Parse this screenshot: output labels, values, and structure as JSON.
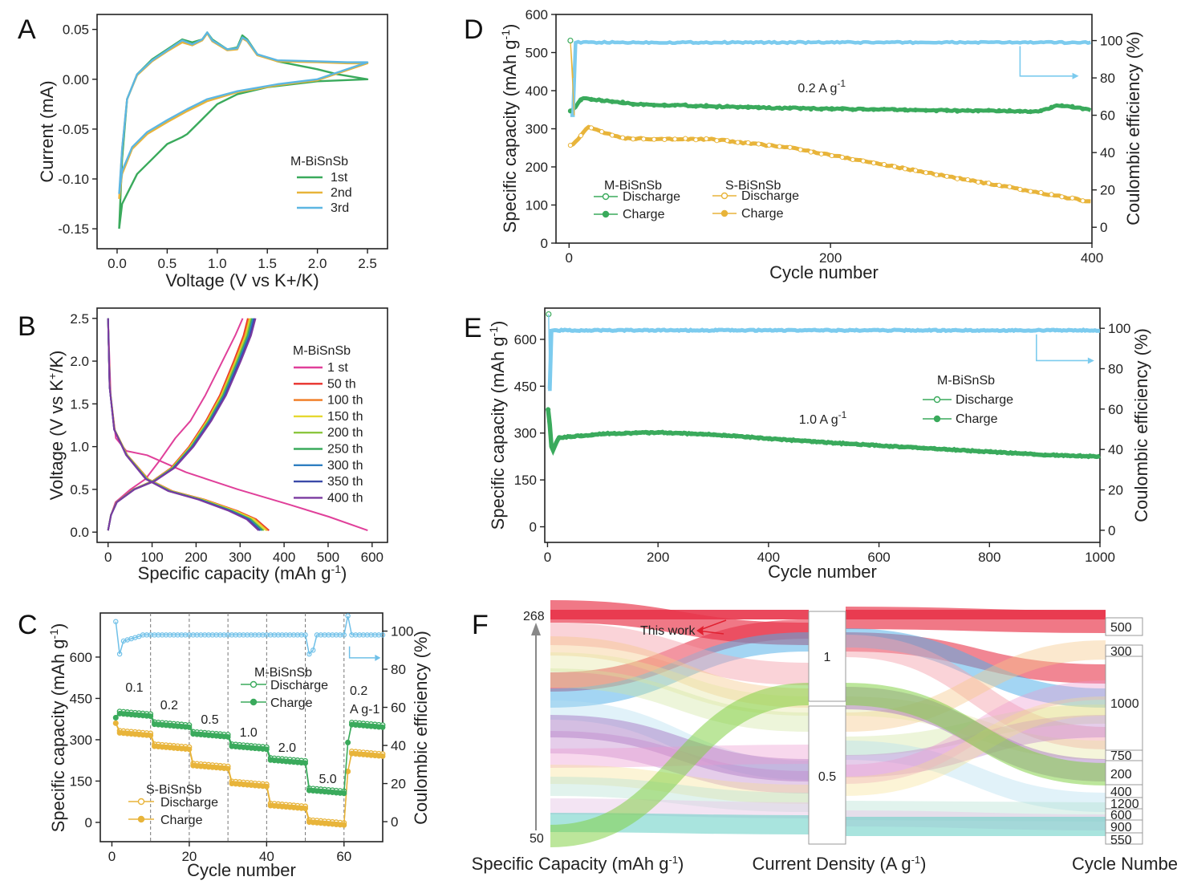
{
  "chart_data": [
    {
      "panel": "A",
      "type": "line",
      "xlabel": "Voltage (V vs K+/K)",
      "ylabel": "Current (mA)",
      "xlim": [
        -0.2,
        2.7
      ],
      "ylim": [
        -0.17,
        0.065
      ],
      "xticks": [
        "0.0",
        "0.5",
        "1.0",
        "1.5",
        "2.0",
        "2.5"
      ],
      "yticks": [
        "0.05",
        "0.00",
        "-0.05",
        "-0.10",
        "-0.15"
      ],
      "legend_title": "M-BiSnSb",
      "series": [
        {
          "name": "1st",
          "color": "#3aaa5c",
          "x": [
            0.02,
            0.05,
            0.1,
            0.2,
            0.35,
            0.5,
            0.65,
            0.7,
            0.85,
            1.0,
            1.2,
            1.5,
            2.0,
            2.5,
            2.2,
            2.0,
            1.6,
            1.4,
            1.3,
            1.25,
            1.2,
            1.1,
            0.95,
            0.9,
            0.85,
            0.75,
            0.65,
            0.5,
            0.35,
            0.2,
            0.1,
            0.05,
            0.02
          ],
          "y": [
            -0.15,
            -0.125,
            -0.115,
            -0.095,
            -0.08,
            -0.065,
            -0.058,
            -0.055,
            -0.04,
            -0.025,
            -0.015,
            -0.008,
            -0.002,
            0.0,
            0.005,
            0.01,
            0.018,
            0.025,
            0.04,
            0.044,
            0.032,
            0.03,
            0.04,
            0.047,
            0.04,
            0.037,
            0.04,
            0.03,
            0.02,
            0.005,
            -0.02,
            -0.08,
            -0.15
          ]
        },
        {
          "name": "2nd",
          "color": "#e8b43a",
          "x": [
            0.02,
            0.05,
            0.15,
            0.3,
            0.5,
            0.7,
            0.9,
            1.2,
            1.6,
            2.0,
            2.5,
            2.3,
            2.0,
            1.6,
            1.4,
            1.3,
            1.25,
            1.2,
            1.1,
            0.95,
            0.9,
            0.85,
            0.75,
            0.65,
            0.5,
            0.35,
            0.2,
            0.1,
            0.05,
            0.02
          ],
          "y": [
            -0.12,
            -0.095,
            -0.07,
            -0.055,
            -0.043,
            -0.032,
            -0.022,
            -0.013,
            -0.006,
            -0.001,
            0.016,
            0.016,
            0.017,
            0.018,
            0.024,
            0.038,
            0.041,
            0.03,
            0.029,
            0.038,
            0.046,
            0.039,
            0.034,
            0.037,
            0.028,
            0.018,
            0.004,
            -0.02,
            -0.07,
            -0.12
          ]
        },
        {
          "name": "3rd",
          "color": "#5cb6e2",
          "x": [
            0.02,
            0.05,
            0.15,
            0.3,
            0.5,
            0.7,
            0.9,
            1.2,
            1.6,
            2.0,
            2.5,
            2.3,
            2.0,
            1.6,
            1.4,
            1.3,
            1.25,
            1.2,
            1.1,
            0.95,
            0.9,
            0.85,
            0.75,
            0.65,
            0.5,
            0.35,
            0.2,
            0.1,
            0.05,
            0.02
          ],
          "y": [
            -0.115,
            -0.092,
            -0.068,
            -0.053,
            -0.041,
            -0.03,
            -0.02,
            -0.012,
            -0.005,
            0.0,
            0.017,
            0.017,
            0.018,
            0.019,
            0.025,
            0.039,
            0.042,
            0.031,
            0.03,
            0.039,
            0.047,
            0.04,
            0.035,
            0.039,
            0.029,
            0.019,
            0.005,
            -0.02,
            -0.07,
            -0.115
          ]
        }
      ]
    },
    {
      "panel": "B",
      "type": "line",
      "xlabel": "Specific capacity (mAh g-1)",
      "ylabel": "Voltage (V vs K+/K)",
      "xlim": [
        -25,
        635
      ],
      "ylim": [
        -0.12,
        2.62
      ],
      "xticks": [
        "0",
        "100",
        "200",
        "300",
        "400",
        "500",
        "600"
      ],
      "yticks": [
        "0.0",
        "0.5",
        "1.0",
        "1.5",
        "2.0",
        "2.5"
      ],
      "legend_title": "M-BiSnSb",
      "series": [
        {
          "name": "1 st",
          "color": "#e0409a",
          "scale": 1.0
        },
        {
          "name": "50 th",
          "color": "#e8302c",
          "scale": 0.62
        },
        {
          "name": "100 th",
          "color": "#f07a20",
          "scale": 0.615
        },
        {
          "name": "150 th",
          "color": "#e6d830",
          "scale": 0.61
        },
        {
          "name": "200 th",
          "color": "#8cc63f",
          "scale": 0.6
        },
        {
          "name": "250 th",
          "color": "#3aaa5c",
          "scale": 0.595
        },
        {
          "name": "300 th",
          "color": "#2f7fc1",
          "scale": 0.59
        },
        {
          "name": "350 th",
          "color": "#3a4aa8",
          "scale": 0.585
        },
        {
          "name": "400 th",
          "color": "#7b3aa0",
          "scale": 0.58
        }
      ]
    },
    {
      "panel": "C",
      "type": "scatter",
      "xlabel": "Cycle number",
      "ylabel": "Specific capacity (mAh g-1)",
      "y2label": "Coulombic efficiency (%)",
      "xlim": [
        -3,
        70
      ],
      "ylim": [
        -70,
        760
      ],
      "y2lim": [
        -10.5,
        109.5
      ],
      "xticks": [
        "0",
        "20",
        "40",
        "60"
      ],
      "yticks": [
        "0",
        "150",
        "300",
        "450",
        "600"
      ],
      "y2ticks": [
        "0",
        "20",
        "40",
        "60",
        "80",
        "100"
      ],
      "rates": [
        "0.1",
        "0.2",
        "0.5",
        "1.0",
        "2.0",
        "5.0",
        "0.2",
        "A g-1"
      ],
      "m_bisnsb": {
        "label": "M-BiSnSb",
        "discharge": "Discharge",
        "charge": "Charge",
        "levels": [
          400,
          360,
          325,
          280,
          230,
          120,
          360
        ]
      },
      "s_bisnsb": {
        "label": "S-BiSnSb",
        "discharge": "Discharge",
        "charge": "Charge",
        "levels": [
          330,
          280,
          210,
          145,
          65,
          5,
          255
        ]
      },
      "ce": 98
    },
    {
      "panel": "D",
      "type": "scatter",
      "xlabel": "Cycle number",
      "ylabel": "Specific capacity (mAh g-1)",
      "y2label": "Coulombic efficiency (%)",
      "xlim": [
        -10,
        400
      ],
      "ylim": [
        0,
        600
      ],
      "y2lim": [
        -8.5,
        114
      ],
      "xticks": [
        "0",
        "200",
        "400"
      ],
      "yticks": [
        "0",
        "100",
        "200",
        "300",
        "400",
        "500",
        "600"
      ],
      "y2ticks": [
        "0",
        "20",
        "40",
        "60",
        "80",
        "100"
      ],
      "rate_label": "0.2 A g-1",
      "legend": {
        "m_title": "M-BiSnSb",
        "s_title": "S-BiSnSb",
        "discharge": "Discharge",
        "charge": "Charge"
      },
      "m_capacity": [
        [
          2,
          345
        ],
        [
          10,
          380
        ],
        [
          50,
          365
        ],
        [
          150,
          355
        ],
        [
          250,
          350
        ],
        [
          360,
          345
        ],
        [
          375,
          362
        ],
        [
          400,
          350
        ]
      ],
      "s_capacity": [
        [
          2,
          255
        ],
        [
          15,
          305
        ],
        [
          40,
          275
        ],
        [
          110,
          272
        ],
        [
          170,
          250
        ],
        [
          250,
          200
        ],
        [
          330,
          150
        ],
        [
          400,
          108
        ]
      ],
      "ce": 99
    },
    {
      "panel": "E",
      "type": "scatter",
      "xlabel": "Cycle number",
      "ylabel": "Specific capacity (mAh g-1)",
      "y2label": "Coulombic efficiency (%)",
      "xlim": [
        -5,
        1000
      ],
      "ylim": [
        -50,
        700
      ],
      "y2lim": [
        -6,
        110
      ],
      "xticks": [
        "0",
        "200",
        "400",
        "600",
        "800",
        "1000"
      ],
      "yticks": [
        "0",
        "150",
        "300",
        "450",
        "600"
      ],
      "y2ticks": [
        "0",
        "20",
        "40",
        "60",
        "80",
        "100"
      ],
      "rate_label": "1.0 A g-1",
      "legend": {
        "title": "M-BiSnSb",
        "discharge": "Discharge",
        "charge": "Charge"
      },
      "capacity": [
        [
          2,
          375
        ],
        [
          8,
          235
        ],
        [
          20,
          285
        ],
        [
          100,
          298
        ],
        [
          200,
          302
        ],
        [
          300,
          295
        ],
        [
          500,
          270
        ],
        [
          700,
          250
        ],
        [
          900,
          230
        ],
        [
          1000,
          225
        ]
      ],
      "ce": 99
    },
    {
      "panel": "F",
      "type": "sankey",
      "axis_labels": [
        "Specific Capacity (mAh g-1)",
        "Current Density (A g-1)",
        "Cycle Numbe"
      ],
      "capacity_range": [
        "268",
        "50"
      ],
      "current_nodes": [
        "1",
        "0.5"
      ],
      "cycle_nodes": [
        "500",
        "300",
        "1000",
        "750",
        "200",
        "400",
        "1200",
        "600",
        "900",
        "550"
      ],
      "annotation": "This work"
    }
  ],
  "panel_letters": [
    "A",
    "B",
    "C",
    "D",
    "E",
    "F"
  ],
  "texts": {
    "a_xlabel": "Voltage (V vs K+/K)",
    "a_ylabel": "Current (mA)",
    "b_xlabel": "Specific capacity (mAh g",
    "b_xsup": "-1",
    "b_xend": ")",
    "b_ylabel": "Voltage (V vs K",
    "b_ysup": "+",
    "b_yend": "/K)",
    "cap_ylabel": "Specific capacity (mAh g",
    "cap_ysup": "-1",
    "cap_yend": ")",
    "ce_label": "Coulombic efficiency (%)",
    "cycle": "Cycle number",
    "f_x1": "Specific Capacity (mAh g",
    "f_x1sup": "-1",
    "f_x1end": ")",
    "f_x2": "Current Density (A g",
    "f_x2sup": "-1",
    "f_x2end": ")",
    "f_x3": "Cycle Numbe"
  }
}
